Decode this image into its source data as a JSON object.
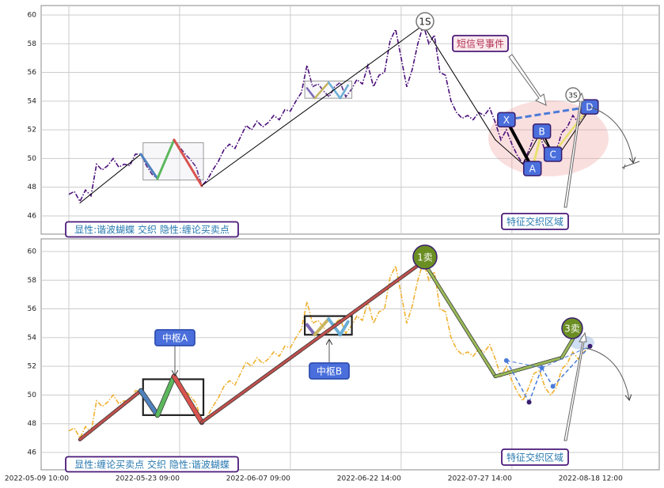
{
  "chart_data": [
    {
      "type": "line",
      "ylim": [
        44.73,
        60.66
      ],
      "yticks": [
        46,
        48,
        50,
        52,
        54,
        56,
        58,
        60
      ],
      "xlim": [
        -5,
        106.6
      ],
      "xticks": [
        0,
        20,
        40,
        60,
        80,
        100
      ],
      "grid": true,
      "x": [
        0,
        1,
        2,
        3,
        4,
        5,
        6,
        7,
        8,
        9,
        10,
        11,
        12,
        13,
        14,
        15,
        16,
        17,
        18,
        19,
        20,
        21,
        22,
        23,
        24,
        25,
        26,
        27,
        28,
        29,
        30,
        31,
        32,
        33,
        34,
        35,
        36,
        37,
        38,
        39,
        40,
        41,
        42,
        43,
        44,
        45,
        46,
        47,
        48,
        49,
        50,
        51,
        52,
        53,
        54,
        55,
        56,
        57,
        58,
        59,
        60,
        61,
        62,
        63,
        64,
        65,
        66,
        67,
        68,
        69,
        70,
        71,
        72,
        73,
        74,
        75,
        76,
        77,
        78,
        79,
        80,
        81,
        82,
        83,
        84,
        85,
        86,
        87,
        88,
        89,
        90,
        91,
        92,
        93,
        94
      ],
      "series": [
        {
          "color": "#4b0f7a",
          "values": [
            47.5,
            47.7,
            47.0,
            47.8,
            47.4,
            49.6,
            49.2,
            49.5,
            50.0,
            49.4,
            49.6,
            49.5,
            50.3,
            50.3,
            49.5,
            48.9,
            48.6,
            49.6,
            50.4,
            51.3,
            50.8,
            50.3,
            49.9,
            49.4,
            48.1,
            48.5,
            49.2,
            49.8,
            50.6,
            51.0,
            50.7,
            51.5,
            52.3,
            52.0,
            52.6,
            52.2,
            52.5,
            53.0,
            52.7,
            53.4,
            53.3,
            54.0,
            54.6,
            56.5,
            55.0,
            55.2,
            54.7,
            54.3,
            55.0,
            55.3,
            54.3,
            54.8,
            55.5,
            55.2,
            56.5,
            55.0,
            55.8,
            56.0,
            58.2,
            59.0,
            57.0,
            55.0,
            56.2,
            58.0,
            59.3,
            58.0,
            58.6,
            56.0,
            55.8,
            54.0,
            53.2,
            52.8,
            53.0,
            52.7,
            53.2,
            53.0,
            53.5,
            52.5,
            51.3,
            52.0,
            51.0,
            50.2,
            49.6,
            50.5,
            51.5,
            51.7,
            50.5,
            50.0,
            50.5,
            51.8,
            52.2,
            53.0,
            52.5,
            53.0,
            53.4
          ]
        }
      ],
      "pen": {
        "x": [
          2,
          13,
          16,
          19,
          24,
          64,
          77,
          82,
          85,
          88,
          94
        ],
        "values": [
          46.9,
          50.3,
          48.6,
          51.3,
          48.1,
          59.3,
          51.3,
          49.6,
          51.7,
          50.0,
          53.4
        ],
        "colors": [
          "#000000",
          "#4f81bd",
          "#5cb85c",
          "#d9534f",
          "#000000",
          "#000000",
          "#000000",
          "#000000",
          "#000000",
          "#000000"
        ],
        "width": 1
      },
      "pivots": [
        {
          "xlim": [
            13.4,
            24.3
          ],
          "ylim": [
            48.5,
            51.1
          ]
        },
        {
          "xlim": [
            42.6,
            51.1
          ],
          "ylim": [
            54.2,
            55.4
          ],
          "x": [
            43,
            44.4,
            46.9,
            49,
            50.4
          ],
          "values": [
            54.9,
            54.2,
            55.3,
            54.2,
            55.1
          ],
          "colors": [
            "#7b68b5",
            "#c8b560",
            "#6baed6",
            "#6baed6"
          ]
        }
      ],
      "harmonic": {
        "labels": [
          "X",
          "A",
          "B",
          "C",
          "D"
        ],
        "x": [
          79,
          83.7,
          85.4,
          87.4,
          94
        ],
        "values": [
          52.7,
          49.3,
          51.9,
          50.3,
          53.6
        ]
      },
      "annotations": [
        "1S",
        "3S",
        "短信号事件",
        "特征交织区域",
        "显性:谐波蝴蝶 交织 隐性:缠论买卖点"
      ]
    },
    {
      "type": "line",
      "ylim": [
        44.79,
        60.88
      ],
      "yticks": [
        46,
        48,
        50,
        52,
        54,
        56,
        58,
        60
      ],
      "xlim": [
        -5,
        106.6
      ],
      "grid": true,
      "xticks": [
        {
          "value": 0,
          "label": "2022-05-09 10:00"
        },
        {
          "value": 20,
          "label": "2022-05-23 09:00"
        },
        {
          "value": 40,
          "label": "2022-06-07 09:00"
        },
        {
          "value": 60,
          "label": "2022-06-22 14:00"
        },
        {
          "value": 80,
          "label": "2022-07-27 14:00"
        },
        {
          "value": 100,
          "label": "2022-08-18 12:00"
        }
      ],
      "x": [
        0,
        1,
        2,
        3,
        4,
        5,
        6,
        7,
        8,
        9,
        10,
        11,
        12,
        13,
        14,
        15,
        16,
        17,
        18,
        19,
        20,
        21,
        22,
        23,
        24,
        25,
        26,
        27,
        28,
        29,
        30,
        31,
        32,
        33,
        34,
        35,
        36,
        37,
        38,
        39,
        40,
        41,
        42,
        43,
        44,
        45,
        46,
        47,
        48,
        49,
        50,
        51,
        52,
        53,
        54,
        55,
        56,
        57,
        58,
        59,
        60,
        61,
        62,
        63,
        64,
        65,
        66,
        67,
        68,
        69,
        70,
        71,
        72,
        73,
        74,
        75,
        76,
        77,
        78,
        79,
        80,
        81,
        82,
        83,
        84,
        85,
        86,
        87,
        88,
        89,
        90,
        91,
        92,
        93,
        94
      ],
      "series": [
        {
          "color": "#f0b030",
          "values": [
            47.5,
            47.7,
            47.0,
            47.8,
            47.4,
            49.6,
            49.2,
            49.5,
            50.0,
            49.4,
            49.6,
            49.5,
            50.3,
            50.3,
            49.5,
            48.9,
            48.6,
            49.6,
            50.4,
            51.3,
            50.8,
            50.3,
            49.9,
            49.4,
            48.1,
            48.5,
            49.2,
            49.8,
            50.6,
            51.0,
            50.7,
            51.5,
            52.3,
            52.0,
            52.6,
            52.2,
            52.5,
            53.0,
            52.7,
            53.4,
            53.3,
            54.0,
            54.6,
            56.5,
            55.0,
            55.2,
            54.7,
            54.3,
            55.0,
            55.3,
            54.3,
            54.8,
            55.5,
            55.2,
            56.5,
            55.0,
            55.8,
            56.0,
            58.2,
            59.0,
            57.0,
            55.0,
            56.2,
            58.0,
            59.3,
            58.0,
            58.6,
            56.0,
            55.8,
            54.0,
            53.2,
            52.8,
            53.0,
            52.7,
            53.2,
            53.0,
            53.5,
            52.5,
            51.3,
            52.0,
            51.0,
            50.2,
            49.6,
            50.5,
            51.5,
            51.7,
            50.5,
            50.0,
            50.5,
            51.8,
            52.2,
            53.0,
            52.5,
            53.0,
            53.4
          ]
        }
      ],
      "pen": {
        "x": [
          2,
          13,
          16,
          19,
          24,
          64,
          77,
          89,
          91
        ],
        "values": [
          46.9,
          50.3,
          48.6,
          51.3,
          48.1,
          59.3,
          51.3,
          52.6,
          53.9
        ],
        "colors": [
          "#c0504d",
          "#4f81bd",
          "#5cb85c",
          "#d9534f",
          "#c0504d",
          "#9bbb59",
          "#9bbb59",
          "#9bbb59"
        ],
        "width": 3,
        "outline": "#333333"
      },
      "pivots": [
        {
          "xlim": [
            13.4,
            24.3
          ],
          "ylim": [
            48.6,
            51.1
          ]
        },
        {
          "xlim": [
            42.6,
            51.1
          ],
          "ylim": [
            54.2,
            55.5
          ],
          "x": [
            43,
            44.4,
            46.9,
            49,
            50.4
          ],
          "values": [
            54.9,
            54.2,
            55.3,
            54.2,
            55.1
          ],
          "colors": [
            "#7b68b5",
            "#c8b560",
            "#6baed6",
            "#6baed6"
          ]
        }
      ],
      "harmonic": {
        "x": [
          79,
          83.1,
          85.4,
          87.4,
          94.1
        ],
        "values": [
          52.4,
          49.5,
          51.9,
          50.6,
          53.4
        ]
      },
      "annotations": [
        "1卖",
        "3卖",
        "中枢A",
        "中枢B",
        "特征交织区域",
        "显性:缠论买卖点 交织 隐性:谐波蝴蝶"
      ]
    }
  ]
}
